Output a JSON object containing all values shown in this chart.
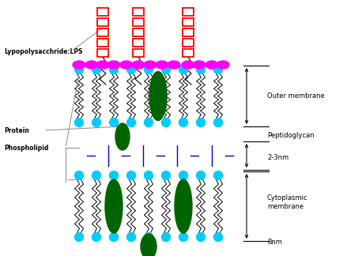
{
  "background_color": "#ffffff",
  "fig_width": 4.58,
  "fig_height": 3.24,
  "dpi": 100,
  "colors": {
    "red": "#ff0000",
    "magenta": "#ff00ff",
    "cyan": "#00ccff",
    "green": "#006400",
    "blue": "#0000cd",
    "black": "#000000",
    "gray": "#888888"
  },
  "labels": {
    "lps": "Lypopolysacchride:LPS",
    "protein": "Protein",
    "phospholipid": "Phospholipid",
    "outer_membrane": "Outer membrane",
    "peptidoglycan": "Peptidoglycan",
    "peptidoglycan_size": "2-3nm",
    "cytoplasmic": "Cytoplasmic\nmembrane",
    "cytoplasmic_size": "8nm"
  }
}
